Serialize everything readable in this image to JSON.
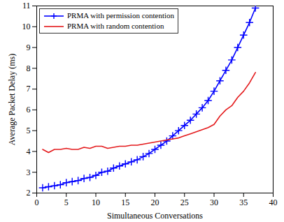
{
  "chart_data": {
    "type": "line",
    "x_label": "Simultaneous Conversations",
    "y_label": "Average Packet Delay (ms)",
    "x": [
      1,
      2,
      3,
      4,
      5,
      6,
      7,
      8,
      9,
      10,
      11,
      12,
      13,
      14,
      15,
      16,
      17,
      18,
      19,
      20,
      21,
      22,
      23,
      24,
      25,
      26,
      27,
      28,
      29,
      30,
      31,
      32,
      33,
      34,
      35,
      36,
      37
    ],
    "series": [
      {
        "name": "PRMA with permission contention",
        "color": "#0000ff",
        "marker": "plus",
        "values": [
          2.25,
          2.3,
          2.35,
          2.4,
          2.5,
          2.55,
          2.6,
          2.7,
          2.75,
          2.85,
          3.0,
          3.05,
          3.2,
          3.3,
          3.4,
          3.5,
          3.6,
          3.75,
          3.9,
          4.1,
          4.3,
          4.5,
          4.75,
          5.0,
          5.25,
          5.5,
          5.8,
          6.1,
          6.45,
          6.9,
          7.4,
          7.9,
          8.4,
          9.0,
          9.6,
          10.2,
          10.9
        ]
      },
      {
        "name": "PRMA with random contention",
        "color": "#e41a1c",
        "values": [
          4.1,
          3.95,
          4.1,
          4.1,
          4.15,
          4.1,
          4.1,
          4.2,
          4.15,
          4.25,
          4.25,
          4.15,
          4.2,
          4.25,
          4.25,
          4.3,
          4.3,
          4.35,
          4.4,
          4.45,
          4.5,
          4.55,
          4.6,
          4.65,
          4.75,
          4.85,
          4.95,
          5.05,
          5.15,
          5.3,
          5.7,
          6.0,
          6.2,
          6.6,
          6.9,
          7.3,
          7.8
        ]
      }
    ],
    "xlim": [
      0,
      40
    ],
    "xticks": [
      0,
      5,
      10,
      15,
      20,
      25,
      30,
      35,
      40
    ],
    "ylim": [
      2,
      11
    ],
    "yticks": [
      2,
      3,
      4,
      5,
      6,
      7,
      8,
      9,
      10,
      11
    ],
    "grid": false,
    "legend": "upper left"
  }
}
